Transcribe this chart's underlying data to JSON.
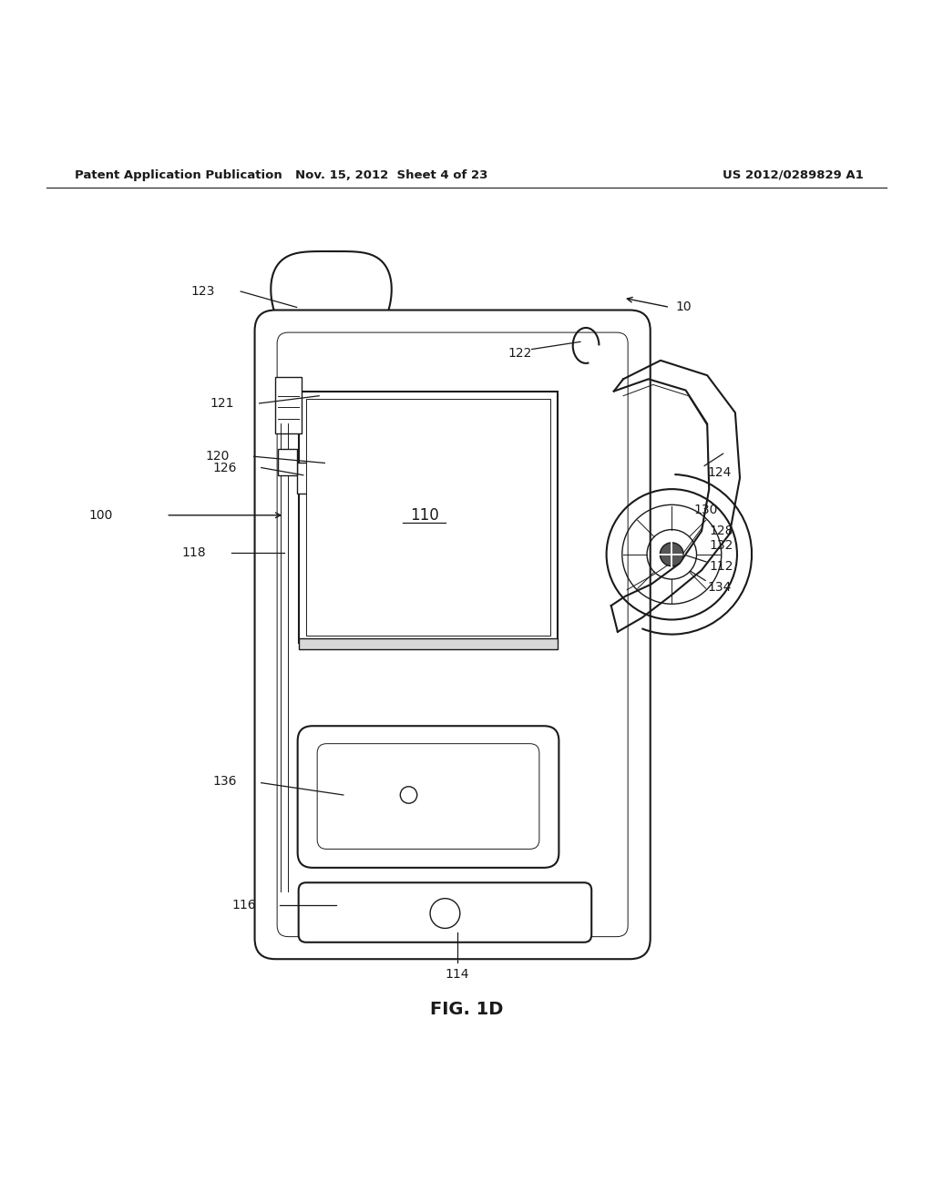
{
  "bg_color": "#ffffff",
  "line_color": "#1a1a1a",
  "header_left": "Patent Application Publication",
  "header_mid": "Nov. 15, 2012  Sheet 4 of 23",
  "header_right": "US 2012/0289829 A1",
  "figure_label": "FIG. 1D"
}
